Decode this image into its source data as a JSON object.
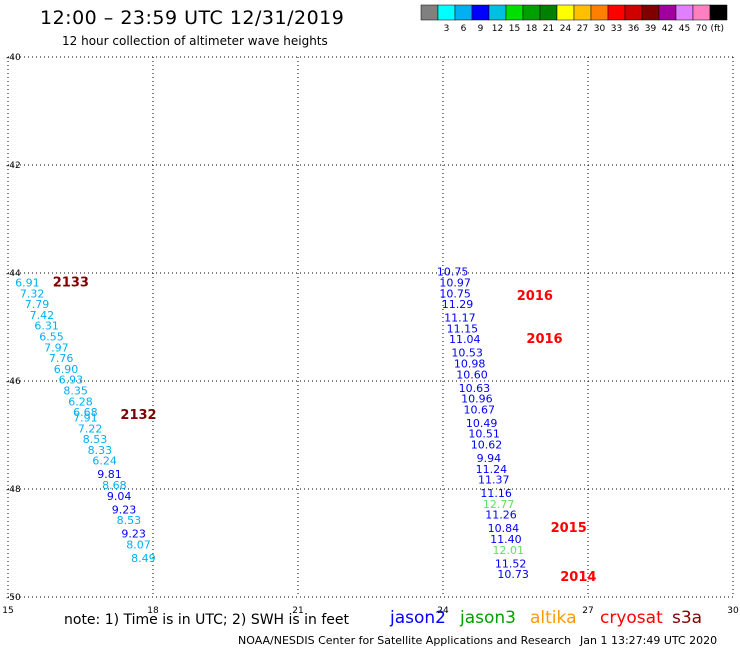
{
  "header": {
    "title": "12:00 – 23:59 UTC 12/31/2019",
    "subtitle": "12 hour collection of altimeter wave heights"
  },
  "colorbar": {
    "unit": "(ft)",
    "swatches": [
      {
        "color": "#808080",
        "label": ""
      },
      {
        "color": "#00ffff",
        "label": "3"
      },
      {
        "color": "#00b0f0",
        "label": "6"
      },
      {
        "color": "#0000ff",
        "label": "9"
      },
      {
        "color": "#00c0e0",
        "label": "12"
      },
      {
        "color": "#00e000",
        "label": "15"
      },
      {
        "color": "#00a000",
        "label": "18"
      },
      {
        "color": "#008000",
        "label": "21"
      },
      {
        "color": "#ffff00",
        "label": "24"
      },
      {
        "color": "#ffc000",
        "label": "27"
      },
      {
        "color": "#ff8000",
        "label": "30"
      },
      {
        "color": "#ff0000",
        "label": "33"
      },
      {
        "color": "#d00000",
        "label": "36"
      },
      {
        "color": "#800000",
        "label": "39"
      },
      {
        "color": "#a000a0",
        "label": "42"
      },
      {
        "color": "#e080ff",
        "label": "45"
      },
      {
        "color": "#ff80c0",
        "label": "70"
      },
      {
        "color": "#000000",
        "label": ""
      }
    ]
  },
  "footer": {
    "note": "note:  1) Time is in UTC;  2) SWH is in feet",
    "credit": "NOAA/NESDIS Center for Satellite Applications and Research",
    "timestamp": "Jan  1 13:27:49 UTC 2020",
    "satellites": [
      {
        "name": "jason2",
        "color": "#0000ff"
      },
      {
        "name": "jason3",
        "color": "#00a000"
      },
      {
        "name": "altika",
        "color": "#ff9900"
      },
      {
        "name": "cryosat",
        "color": "#ff0000"
      },
      {
        "name": "s3a",
        "color": "#800000"
      }
    ]
  },
  "chart_data": {
    "type": "scatter",
    "xlim": [
      15,
      30
    ],
    "ylim": [
      -50,
      -40
    ],
    "x_ticks": [
      "15",
      "18",
      "21",
      "24",
      "27",
      "30"
    ],
    "y_ticks": [
      "-40",
      "-42",
      "-44",
      "-46",
      "-48",
      "-50"
    ],
    "grid": true,
    "series": [
      {
        "color": "#00b0f0",
        "points": [
          {
            "x": 15.4,
            "y": -44.25,
            "label": "6.91"
          },
          {
            "x": 15.5,
            "y": -44.45,
            "label": "7.32"
          },
          {
            "x": 15.6,
            "y": -44.65,
            "label": "7.79"
          },
          {
            "x": 15.7,
            "y": -44.85,
            "label": "7.42"
          },
          {
            "x": 15.8,
            "y": -45.05,
            "label": "6.31"
          },
          {
            "x": 15.9,
            "y": -45.25,
            "label": "6.55"
          },
          {
            "x": 16.0,
            "y": -45.45,
            "label": "7.97"
          },
          {
            "x": 16.1,
            "y": -45.65,
            "label": "7.76"
          },
          {
            "x": 16.2,
            "y": -45.85,
            "label": "6.90"
          },
          {
            "x": 16.3,
            "y": -46.05,
            "label": "6.93"
          },
          {
            "x": 16.4,
            "y": -46.25,
            "label": "8.35"
          },
          {
            "x": 16.5,
            "y": -46.45,
            "label": "6.28"
          },
          {
            "x": 16.6,
            "y": -46.65,
            "label": "6.68"
          },
          {
            "x": 16.6,
            "y": -46.75,
            "label": "7.91"
          },
          {
            "x": 16.7,
            "y": -46.95,
            "label": "7.22"
          },
          {
            "x": 16.8,
            "y": -47.15,
            "label": "8.53"
          },
          {
            "x": 16.9,
            "y": -47.35,
            "label": "8.33"
          },
          {
            "x": 17.0,
            "y": -47.55,
            "label": "6.24"
          }
        ]
      },
      {
        "color": "#0000ff",
        "points": [
          {
            "x": 17.1,
            "y": -47.8,
            "label": "9.81"
          }
        ]
      },
      {
        "color": "#00b0f0",
        "points": [
          {
            "x": 17.2,
            "y": -48.0,
            "label": "8.68"
          }
        ]
      },
      {
        "color": "#0000ff",
        "points": [
          {
            "x": 17.3,
            "y": -48.2,
            "label": "9.04"
          },
          {
            "x": 17.4,
            "y": -48.45,
            "label": "9.23"
          }
        ]
      },
      {
        "color": "#00b0f0",
        "points": [
          {
            "x": 17.5,
            "y": -48.65,
            "label": "8.53"
          }
        ]
      },
      {
        "color": "#0000ff",
        "points": [
          {
            "x": 17.6,
            "y": -48.9,
            "label": "9.23"
          }
        ]
      },
      {
        "color": "#00b0f0",
        "points": [
          {
            "x": 17.7,
            "y": -49.1,
            "label": "8.07"
          },
          {
            "x": 17.8,
            "y": -49.35,
            "label": "8.49"
          }
        ]
      },
      {
        "color": "#0000ff",
        "points": [
          {
            "x": 24.2,
            "y": -44.05,
            "label": "10.75"
          },
          {
            "x": 24.25,
            "y": -44.25,
            "label": "10.97"
          },
          {
            "x": 24.25,
            "y": -44.45,
            "label": "10.75"
          },
          {
            "x": 24.3,
            "y": -44.65,
            "label": "11.29"
          },
          {
            "x": 24.35,
            "y": -44.9,
            "label": "11.17"
          },
          {
            "x": 24.4,
            "y": -45.1,
            "label": "11.15"
          },
          {
            "x": 24.45,
            "y": -45.3,
            "label": "11.04"
          },
          {
            "x": 24.5,
            "y": -45.55,
            "label": "10.53"
          },
          {
            "x": 24.55,
            "y": -45.75,
            "label": "10.98"
          },
          {
            "x": 24.6,
            "y": -45.95,
            "label": "10.60"
          },
          {
            "x": 24.65,
            "y": -46.2,
            "label": "10.63"
          },
          {
            "x": 24.7,
            "y": -46.4,
            "label": "10.96"
          },
          {
            "x": 24.75,
            "y": -46.6,
            "label": "10.67"
          },
          {
            "x": 24.8,
            "y": -46.85,
            "label": "10.49"
          },
          {
            "x": 24.85,
            "y": -47.05,
            "label": "10.51"
          },
          {
            "x": 24.9,
            "y": -47.25,
            "label": "10.62"
          },
          {
            "x": 24.95,
            "y": -47.5,
            "label": "9.94"
          },
          {
            "x": 25.0,
            "y": -47.7,
            "label": "11.24"
          },
          {
            "x": 25.05,
            "y": -47.9,
            "label": "11.37"
          },
          {
            "x": 25.1,
            "y": -48.15,
            "label": "11.16"
          }
        ]
      },
      {
        "color": "#60e060",
        "points": [
          {
            "x": 25.15,
            "y": -48.35,
            "label": "12.77"
          }
        ]
      },
      {
        "color": "#0000ff",
        "points": [
          {
            "x": 25.2,
            "y": -48.55,
            "label": "11.26"
          },
          {
            "x": 25.25,
            "y": -48.8,
            "label": "10.84"
          },
          {
            "x": 25.3,
            "y": -49.0,
            "label": "11.40"
          }
        ]
      },
      {
        "color": "#60e060",
        "points": [
          {
            "x": 25.35,
            "y": -49.2,
            "label": "12.01"
          }
        ]
      },
      {
        "color": "#0000ff",
        "points": [
          {
            "x": 25.4,
            "y": -49.45,
            "label": "11.52"
          },
          {
            "x": 25.45,
            "y": -49.65,
            "label": "10.73"
          }
        ]
      }
    ],
    "annotations": [
      {
        "text": "2133",
        "x": 16.3,
        "y": -44.25,
        "color": "#800000"
      },
      {
        "text": "2132",
        "x": 17.7,
        "y": -46.7,
        "color": "#800000"
      },
      {
        "text": "2016",
        "x": 25.9,
        "y": -44.5,
        "color": "#ff0000"
      },
      {
        "text": "2016",
        "x": 26.1,
        "y": -45.3,
        "color": "#ff0000"
      },
      {
        "text": "2015",
        "x": 26.6,
        "y": -48.8,
        "color": "#ff0000"
      },
      {
        "text": "2014",
        "x": 26.8,
        "y": -49.7,
        "color": "#ff0000"
      }
    ]
  }
}
